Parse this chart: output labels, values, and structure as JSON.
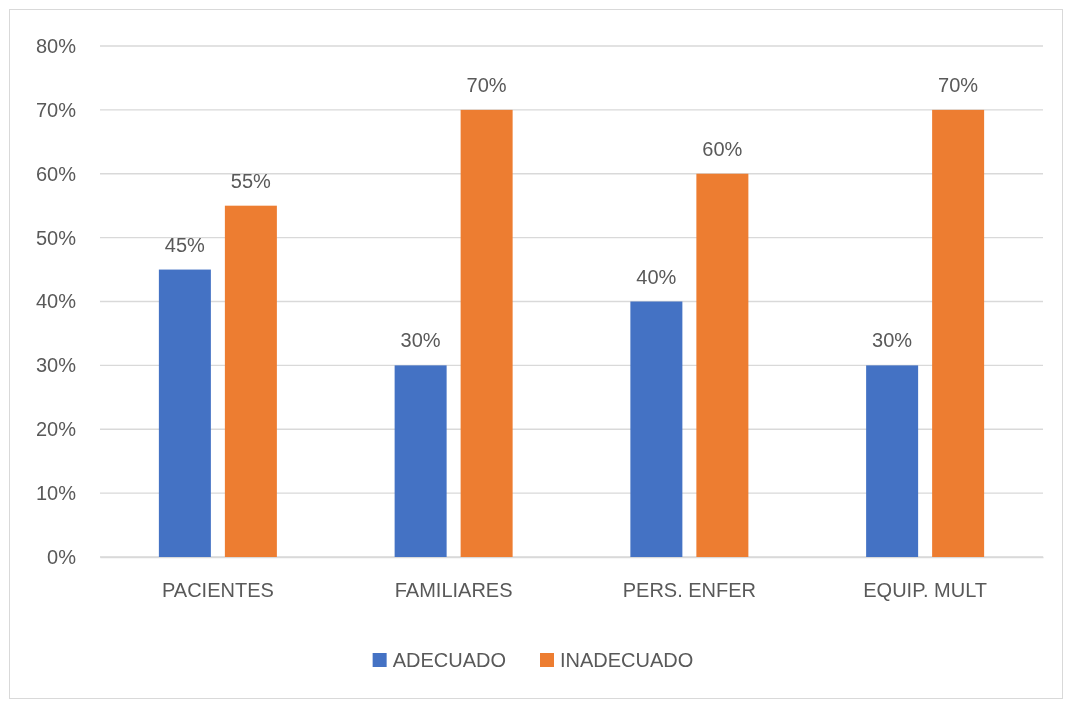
{
  "chart_data": {
    "type": "bar",
    "categories": [
      "PACIENTES",
      "FAMILIARES",
      "PERS. ENFER",
      "EQUIP. MULT"
    ],
    "series": [
      {
        "name": "ADECUADO",
        "color": "#4472c4",
        "values": [
          45,
          30,
          40,
          30
        ],
        "value_labels": [
          "45%",
          "30%",
          "40%",
          "30%"
        ]
      },
      {
        "name": "INADECUADO",
        "color": "#ed7d31",
        "values": [
          55,
          70,
          60,
          70
        ],
        "value_labels": [
          "55%",
          "70%",
          "60%",
          "70%"
        ]
      }
    ],
    "ylim": [
      0,
      80
    ],
    "yticks": [
      {
        "value": 0,
        "label": "0%"
      },
      {
        "value": 10,
        "label": "10%"
      },
      {
        "value": 20,
        "label": "20%"
      },
      {
        "value": 30,
        "label": "30%"
      },
      {
        "value": 40,
        "label": "40%"
      },
      {
        "value": 50,
        "label": "50%"
      },
      {
        "value": 60,
        "label": "60%"
      },
      {
        "value": 70,
        "label": "70%"
      },
      {
        "value": 80,
        "label": "80%"
      }
    ],
    "grid": "y",
    "legend": "bottom"
  }
}
